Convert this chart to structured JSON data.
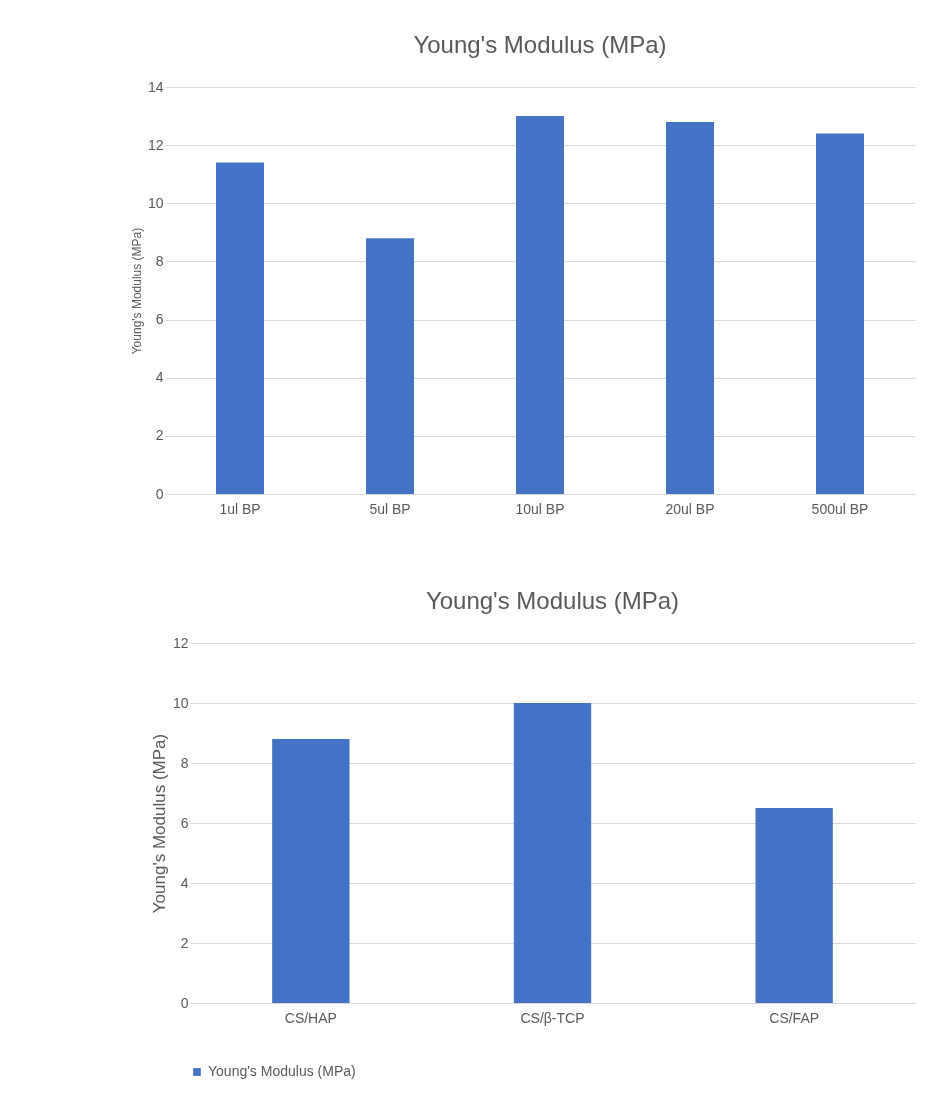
{
  "chart_data": [
    {
      "type": "bar",
      "title": "Young's Modulus (MPa)",
      "ylabel": "Young's Modulus (MPa)",
      "categories": [
        "1ul BP",
        "5ul BP",
        "10ul BP",
        "20ul BP",
        "500ul BP"
      ],
      "series": [
        {
          "color": "#4472c4",
          "values": [
            11.4,
            8.8,
            13.0,
            12.8,
            12.4
          ]
        }
      ],
      "ylim": [
        0,
        14
      ],
      "yticks": [
        0,
        2,
        4,
        6,
        8,
        10,
        12,
        14
      ],
      "grid": "y"
    },
    {
      "type": "bar",
      "title": "Young's Modulus (MPa)",
      "ylabel": "Young's Modulus (MPa)",
      "categories": [
        "CS/HAP",
        "CS/β-TCP",
        "CS/FAP"
      ],
      "series": [
        {
          "name": "Young's Modulus (MPa)",
          "color": "#4472c4",
          "values": [
            8.8,
            10.0,
            6.5
          ]
        }
      ],
      "ylim": [
        0,
        12
      ],
      "yticks": [
        0,
        2,
        4,
        6,
        8,
        10,
        12
      ],
      "grid": "y",
      "legend": "bottom"
    }
  ]
}
